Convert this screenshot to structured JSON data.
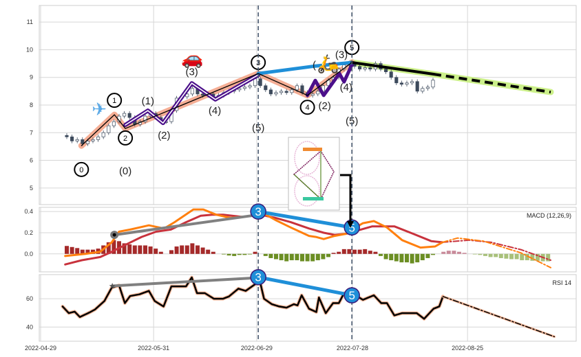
{
  "chart_data": {
    "type": "line",
    "title": "",
    "x_axis": {
      "unit": "bar index",
      "range": [
        -0.3,
        102
      ],
      "ticks": [
        {
          "x": 0,
          "label": "2022-04-29"
        },
        {
          "x": 21.6,
          "label": "2022-05-31"
        },
        {
          "x": 41.3,
          "label": "2022-06-29"
        },
        {
          "x": 59.6,
          "label": "2022-07-28"
        },
        {
          "x": 81.6,
          "label": "2022-08-25"
        }
      ]
    },
    "price_panel": {
      "ylim": [
        4.4,
        11.6
      ],
      "yticks": [
        5,
        6,
        7,
        8,
        9,
        10,
        11
      ],
      "grid": true,
      "candles": {
        "start_index": 5,
        "closes": [
          6.85,
          6.7,
          6.75,
          6.6,
          6.7,
          6.75,
          6.85,
          7.0,
          7.25,
          7.4,
          7.6,
          7.7,
          7.55,
          7.3,
          7.4,
          7.6,
          7.7,
          7.55,
          7.4,
          7.4,
          7.8,
          8.25,
          8.3,
          8.4,
          8.6,
          8.4,
          8.35,
          8.4,
          8.3,
          8.35,
          8.45,
          8.5,
          8.55,
          8.6,
          8.65,
          8.7,
          8.95,
          8.7,
          8.55,
          8.4,
          8.45,
          8.5,
          8.45,
          8.55,
          8.7,
          8.45,
          8.35,
          8.4,
          8.5,
          8.7,
          8.9,
          9.0,
          9.3,
          9.45,
          9.5,
          9.4,
          9.3,
          9.35,
          9.3,
          9.5,
          9.3,
          9.2,
          9.0,
          8.8,
          8.75,
          8.8,
          8.85,
          8.5,
          8.6,
          8.65,
          8.9
        ]
      },
      "primary_wave": [
        [
          7.8,
          6.53
        ],
        [
          14.1,
          7.65
        ],
        [
          16.2,
          7.15
        ],
        [
          41.6,
          9.14
        ],
        [
          51,
          8.35
        ],
        [
          59.5,
          9.54
        ]
      ],
      "intermediate_wave_a": [
        [
          16.2,
          7.28
        ],
        [
          20.5,
          7.8
        ],
        [
          23.4,
          7.35
        ],
        [
          28.9,
          8.79
        ],
        [
          33.4,
          8.2
        ],
        [
          41.6,
          9.09
        ]
      ],
      "intermediate_wave_b": [
        [
          51,
          8.35
        ],
        [
          52.5,
          8.89
        ],
        [
          54.1,
          8.35
        ],
        [
          57.1,
          9.14
        ],
        [
          58,
          8.84
        ],
        [
          59.5,
          9.46
        ]
      ],
      "blue_trend": [
        [
          41.6,
          9.14
        ],
        [
          52.5,
          9.41
        ],
        [
          59.5,
          9.54
        ]
      ],
      "projection_solid": [
        [
          59.5,
          9.54
        ],
        [
          75,
          9.12
        ]
      ],
      "projection_dashed": [
        [
          75,
          9.12
        ],
        [
          97.5,
          8.47
        ]
      ],
      "circle_labels": [
        {
          "text": "0",
          "x": 7.8,
          "y": 5.67
        },
        {
          "text": "1",
          "x": 14.1,
          "y": 8.17
        },
        {
          "text": "2",
          "x": 16.2,
          "y": 6.81
        },
        {
          "text": "3",
          "x": 41.6,
          "y": 9.54
        },
        {
          "text": "4",
          "x": 51,
          "y": 7.92
        },
        {
          "text": "5",
          "x": 59.5,
          "y": 10.08
        }
      ],
      "paren_labels": [
        {
          "text": "(0)",
          "x": 16.2,
          "y": 5.62
        },
        {
          "text": "(1)",
          "x": 20.5,
          "y": 8.15
        },
        {
          "text": "(2)",
          "x": 23.6,
          "y": 6.91
        },
        {
          "text": "(3)",
          "x": 28.9,
          "y": 9.21
        },
        {
          "text": "(4)",
          "x": 33.3,
          "y": 7.8
        },
        {
          "text": "(5)",
          "x": 41.6,
          "y": 7.18
        },
        {
          "text": "(",
          "x": 52.3,
          "y": 9.45
        },
        {
          "text": "(2)",
          "x": 54.3,
          "y": 7.97
        },
        {
          "text": "(3)",
          "x": 57.5,
          "y": 9.83
        },
        {
          "text": "(4)",
          "x": 58.4,
          "y": 8.64
        },
        {
          "text": "(5)",
          "x": 59.5,
          "y": 7.43
        }
      ],
      "icons": [
        {
          "name": "airplane-icon",
          "glyph": "✈",
          "x": 11.2,
          "y": 7.85,
          "color": "#5aa9e6"
        },
        {
          "name": "car-icon",
          "glyph": "🚗",
          "x": 29,
          "y": 9.7,
          "color": "#2f8fd8"
        },
        {
          "name": "scooter-icon",
          "glyph": "🛵",
          "x": 55,
          "y": 9.5,
          "color": "#f0a030"
        }
      ]
    },
    "macd_panel": {
      "title": "MACD (12,26,9)",
      "ylim": [
        -0.17,
        0.44
      ],
      "yticks": [
        {
          "v": 0.4,
          "label": "0.4"
        },
        {
          "v": 0.2,
          "label": "0.2"
        },
        {
          "v": 0.0,
          "label": "0.0"
        }
      ],
      "macd": [
        [
          4.7,
          -0.02
        ],
        [
          8.6,
          0
        ],
        [
          11.4,
          0.02
        ],
        [
          13.6,
          0.11
        ],
        [
          15,
          0.21
        ],
        [
          17.1,
          0.23
        ],
        [
          20.7,
          0.27
        ],
        [
          23.6,
          0.24
        ],
        [
          25.6,
          0.3
        ],
        [
          29.2,
          0.42
        ],
        [
          31.1,
          0.42
        ],
        [
          33.6,
          0.37
        ],
        [
          36.3,
          0.34
        ],
        [
          40.7,
          0.36
        ],
        [
          42,
          0.4
        ],
        [
          44.9,
          0.32
        ],
        [
          47.8,
          0.25
        ],
        [
          49.1,
          0.22
        ],
        [
          51.3,
          0.17
        ],
        [
          52.6,
          0.16
        ],
        [
          54.1,
          0.14
        ],
        [
          56.2,
          0.17
        ],
        [
          58.4,
          0.19
        ],
        [
          59.5,
          0.23
        ],
        [
          61.6,
          0.29
        ],
        [
          63.7,
          0.31
        ],
        [
          66.2,
          0.25
        ],
        [
          69.1,
          0.13
        ],
        [
          72.6,
          0.06
        ],
        [
          75.4,
          0.07
        ],
        [
          76.8,
          0.11
        ]
      ],
      "macd_forecast": [
        [
          76.8,
          0.11
        ],
        [
          79.7,
          0.15
        ],
        [
          84.7,
          0.12
        ],
        [
          91.8,
          0.01
        ],
        [
          97.5,
          -0.13
        ]
      ],
      "signal": [
        [
          4.7,
          -0.1
        ],
        [
          7.9,
          -0.06
        ],
        [
          11.4,
          -0.03
        ],
        [
          13.6,
          0.02
        ],
        [
          16.4,
          0.09
        ],
        [
          19.3,
          0.16
        ],
        [
          22.1,
          0.21
        ],
        [
          24.9,
          0.23
        ],
        [
          27.8,
          0.3
        ],
        [
          30.6,
          0.36
        ],
        [
          32.8,
          0.37
        ],
        [
          34.9,
          0.37
        ],
        [
          38.5,
          0.35
        ],
        [
          42,
          0.37
        ],
        [
          44.9,
          0.34
        ],
        [
          47.8,
          0.3
        ],
        [
          51.3,
          0.24
        ],
        [
          54.1,
          0.2
        ],
        [
          56.2,
          0.18
        ],
        [
          58.4,
          0.19
        ],
        [
          60.5,
          0.22
        ],
        [
          63.4,
          0.26
        ],
        [
          67.6,
          0.26
        ],
        [
          71.2,
          0.19
        ],
        [
          74.7,
          0.12
        ],
        [
          76.8,
          0.11
        ]
      ],
      "signal_forecast": [
        [
          76.8,
          0.11
        ],
        [
          81.9,
          0.13
        ],
        [
          86.1,
          0.11
        ],
        [
          91.8,
          0.04
        ],
        [
          97.5,
          -0.06
        ]
      ],
      "histogram_start_index": 5,
      "histogram_actual_count": 72,
      "histogram": [
        0.075,
        0.065,
        0.055,
        0.04,
        0.04,
        0.04,
        0.05,
        0.08,
        0.11,
        0.13,
        0.12,
        0.1,
        0.09,
        0.08,
        0.08,
        0.08,
        0.07,
        0.05,
        0.02,
        0,
        0.035,
        0.07,
        0.08,
        0.08,
        0.1,
        0.08,
        0.06,
        0.04,
        0.02,
        0,
        -0.005,
        -0.015,
        -0.02,
        -0.01,
        -0.01,
        -0.005,
        0.02,
        0,
        -0.02,
        -0.04,
        -0.05,
        -0.06,
        -0.07,
        -0.06,
        -0.06,
        -0.07,
        -0.07,
        -0.07,
        -0.06,
        -0.05,
        -0.03,
        0.01,
        0.02,
        0.045,
        0.045,
        0.04,
        0.04,
        0.045,
        0.03,
        0.02,
        -0.02,
        -0.05,
        -0.06,
        -0.07,
        -0.08,
        -0.08,
        -0.09,
        -0.08,
        -0.06,
        -0.04,
        -0.01,
        0,
        0.02,
        0.03,
        0.03,
        0.02,
        0.01,
        0,
        -0.005,
        -0.01,
        -0.02,
        -0.03,
        -0.03,
        -0.04,
        -0.045,
        -0.05,
        -0.05,
        -0.06,
        -0.06,
        -0.065,
        -0.065,
        -0.07,
        -0.07
      ],
      "gray_divergence": [
        [
          14.1,
          0.18
        ],
        [
          41.6,
          0.37
        ]
      ],
      "blue_divergence": [
        [
          41.6,
          0.4
        ],
        [
          59.5,
          0.25
        ]
      ],
      "badges": [
        {
          "text": "3",
          "x": 41.6,
          "y": 0.4
        },
        {
          "text": "5",
          "x": 59.5,
          "y": 0.25
        }
      ]
    },
    "rsi_panel": {
      "title": "RSI 14",
      "ylim": [
        30,
        77
      ],
      "yticks": [
        {
          "v": 60,
          "label": "60"
        },
        {
          "v": 40,
          "label": "40"
        }
      ],
      "rsi": [
        [
          4.2,
          54.5
        ],
        [
          5.4,
          49.8
        ],
        [
          6.5,
          50.9
        ],
        [
          7.5,
          47.1
        ],
        [
          9.3,
          50.2
        ],
        [
          10.4,
          52.4
        ],
        [
          12.2,
          58.4
        ],
        [
          13.6,
          67.9
        ],
        [
          15,
          69.4
        ],
        [
          16.1,
          56.9
        ],
        [
          17.1,
          61.9
        ],
        [
          18.9,
          63.1
        ],
        [
          20.7,
          65.5
        ],
        [
          21.8,
          58.4
        ],
        [
          23.5,
          54.5
        ],
        [
          25,
          68.7
        ],
        [
          26.4,
          68.7
        ],
        [
          27.8,
          68.7
        ],
        [
          28.9,
          75
        ],
        [
          29.9,
          63.9
        ],
        [
          31.4,
          63.9
        ],
        [
          33.1,
          60
        ],
        [
          34.9,
          60
        ],
        [
          36,
          61.6
        ],
        [
          37.8,
          67.1
        ],
        [
          39.2,
          65.5
        ],
        [
          41,
          70.2
        ],
        [
          42,
          71
        ],
        [
          42.7,
          60
        ],
        [
          44.2,
          56.1
        ],
        [
          45.6,
          54.5
        ],
        [
          47,
          53.7
        ],
        [
          48.4,
          56.1
        ],
        [
          49.1,
          55.3
        ],
        [
          49.9,
          62.4
        ],
        [
          51.3,
          52.9
        ],
        [
          52.7,
          50.6
        ],
        [
          53.2,
          60.8
        ],
        [
          54.5,
          49.8
        ],
        [
          55.9,
          56.9
        ],
        [
          57,
          56.9
        ],
        [
          58,
          63.9
        ],
        [
          59.5,
          63.9
        ],
        [
          61.6,
          59.2
        ],
        [
          63.7,
          62.4
        ],
        [
          65.1,
          56.9
        ],
        [
          66.2,
          56.9
        ],
        [
          67.6,
          48.2
        ],
        [
          69.1,
          49.8
        ],
        [
          71.9,
          49.8
        ],
        [
          73.3,
          45.8
        ],
        [
          75.1,
          52.9
        ],
        [
          76.2,
          54.5
        ],
        [
          76.9,
          61.6
        ]
      ],
      "rsi_forecast": [
        [
          76.9,
          61.6
        ],
        [
          98.2,
          33.2
        ]
      ],
      "gray_divergence": [
        [
          13.7,
          69
        ],
        [
          41.6,
          74.8
        ]
      ],
      "blue_divergence": [
        [
          41.6,
          75.2
        ],
        [
          59.5,
          62.4
        ]
      ],
      "badges": [
        {
          "text": "3",
          "x": 41.6,
          "y": 75.2
        },
        {
          "text": "5",
          "x": 59.5,
          "y": 62.4
        }
      ]
    },
    "vertical_markers": [
      41.6,
      59.5
    ],
    "colors": {
      "macd": "#ff7f0e",
      "signal": "#c8323c",
      "hist_pos": "#a52a2a",
      "hist_neg": "#6b8e23",
      "wave_purple": "#4b0f8a",
      "wave_salmon": "#f4a58a",
      "blue": "#1f8fd8",
      "gray": "#808080",
      "projection_glow": "#ccf08a"
    }
  }
}
